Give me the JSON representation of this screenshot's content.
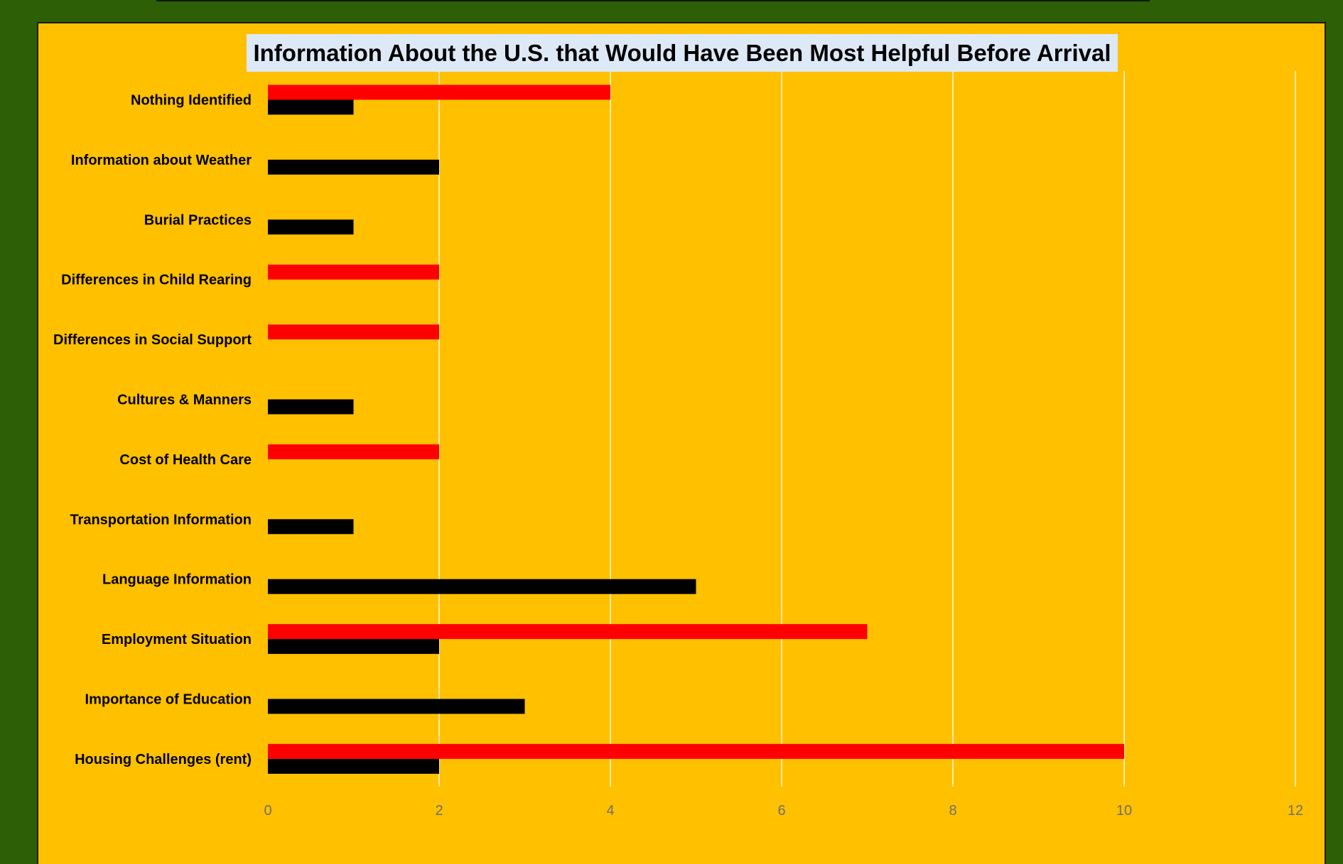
{
  "chart_data": {
    "type": "bar",
    "orientation": "horizontal",
    "title": "Information About the U.S. that Would Have Been Most Helpful Before Arrival",
    "xlabel": "",
    "ylabel": "",
    "xlim": [
      0,
      12
    ],
    "xticks": [
      0,
      2,
      4,
      6,
      8,
      10,
      12
    ],
    "grid": "vertical",
    "legend": "none",
    "categories": [
      "Nothing Identified",
      "Information about Weather",
      "Burial Practices",
      "Differences in Child Rearing",
      "Differences in Social Support",
      "Cultures & Manners",
      "Cost of Health Care",
      "Transportation Information",
      "Language Information",
      "Employment Situation",
      "Importance of Education",
      "Housing Challenges (rent)"
    ],
    "series": [
      {
        "color": "#ff0000",
        "values": [
          4,
          0,
          0,
          2,
          2,
          0,
          2,
          0,
          0,
          7,
          0,
          10
        ]
      },
      {
        "color": "#000000",
        "values": [
          1,
          2,
          1,
          0,
          0,
          1,
          0,
          1,
          5,
          2,
          3,
          2
        ]
      }
    ]
  },
  "colors": {
    "background": "#2d5f06",
    "plot_area": "#ffc000",
    "title_box": "#dde9f6",
    "gridline": "#ffffff"
  }
}
